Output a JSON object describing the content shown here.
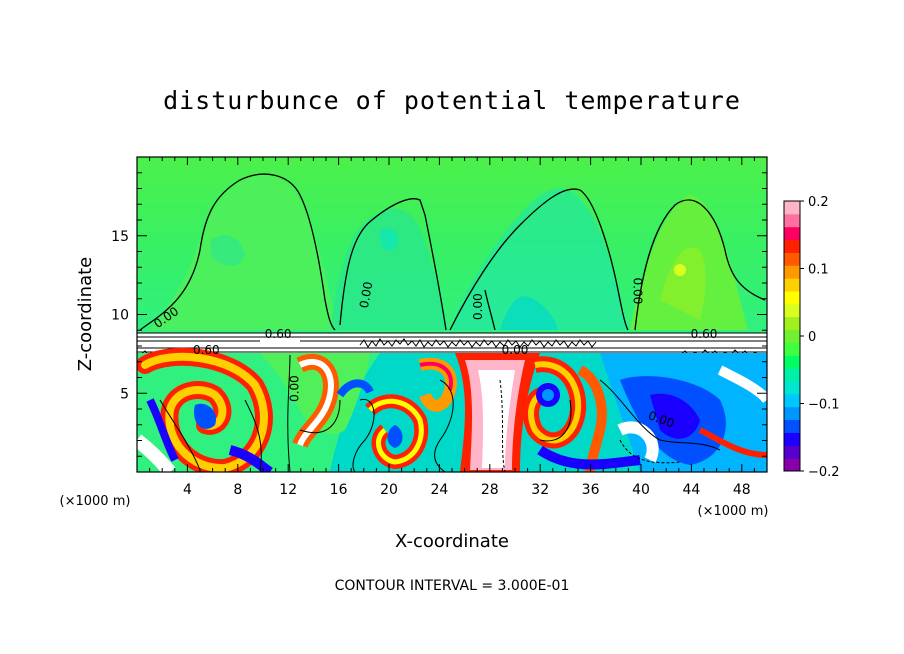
{
  "chart_data": {
    "type": "heatmap",
    "title": "disturbunce of potential temperature",
    "xlabel": "X-coordinate",
    "ylabel": "Z-coordinate",
    "x_unit": "(×1000 m)",
    "y_unit": "(×1000 m)",
    "xlim": [
      0,
      50
    ],
    "ylim": [
      0,
      20
    ],
    "xticks": [
      4,
      8,
      12,
      16,
      20,
      24,
      28,
      32,
      36,
      40,
      44,
      48
    ],
    "yticks": [
      5,
      10,
      15
    ],
    "colorbar": {
      "range": [
        -0.2,
        0.2
      ],
      "ticks": [
        {
          "value": 0.2,
          "label": "0.2"
        },
        {
          "value": 0.1,
          "label": "0.1"
        },
        {
          "value": 0,
          "label": "0"
        },
        {
          "value": -0.1,
          "label": "−0.1"
        },
        {
          "value": -0.2,
          "label": "−0.2"
        }
      ],
      "colors": [
        "#8800aa",
        "#5500cc",
        "#1a00ff",
        "#0050ff",
        "#0096ff",
        "#00c8ff",
        "#00e6d2",
        "#00f0aa",
        "#00ff64",
        "#40ff40",
        "#70f030",
        "#a0f020",
        "#d8ff20",
        "#ffff00",
        "#ffd000",
        "#ff9900",
        "#ff5a00",
        "#ff2000",
        "#ff0060",
        "#ff70a0",
        "#ffb4c8"
      ]
    },
    "contour_labels": [
      {
        "text": "0.00",
        "x": 2.5,
        "z": 9.6,
        "rotate": -35
      },
      {
        "text": "0.00",
        "x": 18.5,
        "z": 11.2,
        "rotate": -80
      },
      {
        "text": "0.00",
        "x": 27.4,
        "z": 10.5,
        "rotate": -90
      },
      {
        "text": "0.00",
        "x": 39.4,
        "z": 11.5,
        "rotate": 90
      },
      {
        "text": "0.60",
        "x": 11.2,
        "z": 8.5,
        "rotate": 0
      },
      {
        "text": "0.60",
        "x": 45.0,
        "z": 8.5,
        "rotate": 0
      },
      {
        "text": "0.00",
        "x": 30.0,
        "z": 7.5,
        "rotate": 0
      },
      {
        "text": "0.00",
        "x": 12.8,
        "z": 5.3,
        "rotate": -90
      },
      {
        "text": "0.00",
        "x": 41.5,
        "z": 3.1,
        "rotate": 20
      },
      {
        "text": "0.60",
        "x": 5.5,
        "z": 7.5,
        "rotate": 0
      }
    ],
    "contour_interval": "CONTOUR INTERVAL = 3.000E-01"
  }
}
